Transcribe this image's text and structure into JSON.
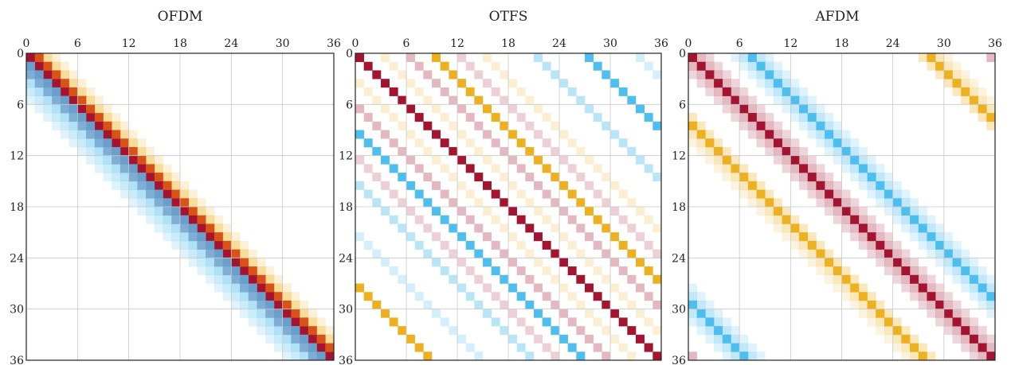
{
  "chart_data": [
    {
      "type": "heatmap",
      "title": "OFDM",
      "size": 36,
      "xticks": [
        "0",
        "6",
        "12",
        "18",
        "24",
        "30",
        "36"
      ],
      "yticks": [
        "0",
        "6",
        "12",
        "18",
        "24",
        "30",
        "36"
      ],
      "grid": true,
      "xaxis_position": "top",
      "bands": [
        {
          "offset": 0,
          "color": "#A2142F",
          "alpha": 1.0
        },
        {
          "offset": 1,
          "color": "#D95319",
          "alpha": 1.0
        },
        {
          "offset": 2,
          "color": "#EDB120",
          "alpha": 0.45
        },
        {
          "offset": 3,
          "color": "#EDB120",
          "alpha": 0.18
        },
        {
          "offset": -1,
          "color": "#6A9FCC",
          "alpha": 1.0
        },
        {
          "offset": -2,
          "color": "#6A9FCC",
          "alpha": 0.85
        },
        {
          "offset": -3,
          "color": "#4DBEEE",
          "alpha": 0.45
        },
        {
          "offset": -4,
          "color": "#4DBEEE",
          "alpha": 0.3
        },
        {
          "offset": -5,
          "color": "#4DBEEE",
          "alpha": 0.18
        }
      ]
    },
    {
      "type": "heatmap",
      "title": "OTFS",
      "size": 36,
      "xticks": [
        "0",
        "6",
        "12",
        "18",
        "24",
        "30",
        "36"
      ],
      "yticks": [
        "0",
        "6",
        "12",
        "18",
        "24",
        "30",
        "36"
      ],
      "grid": true,
      "xaxis_position": "top",
      "bands": [
        {
          "offset": 0,
          "color": "#A2142F",
          "alpha": 1.0
        },
        {
          "offset": 6,
          "color": "#A2142F",
          "alpha": 0.3
        },
        {
          "offset": -6,
          "color": "#A2142F",
          "alpha": 0.3
        },
        {
          "offset": 12,
          "color": "#A2142F",
          "alpha": 0.2
        },
        {
          "offset": -12,
          "color": "#A2142F",
          "alpha": 0.2
        },
        {
          "offset": 9,
          "color": "#EDB120",
          "alpha": 1.0
        },
        {
          "offset": -27,
          "color": "#EDB120",
          "alpha": 1.0
        },
        {
          "offset": 3,
          "color": "#EDB120",
          "alpha": 0.2
        },
        {
          "offset": -3,
          "color": "#EDB120",
          "alpha": 0.2
        },
        {
          "offset": 15,
          "color": "#EDB120",
          "alpha": 0.2
        },
        {
          "offset": -9,
          "color": "#EDB120",
          "alpha": 0.2
        },
        {
          "offset": 27,
          "color": "#4DBEEE",
          "alpha": 1.0
        },
        {
          "offset": -9,
          "color": "#4DBEEE",
          "alpha": 1.0
        },
        {
          "offset": 21,
          "color": "#4DBEEE",
          "alpha": 0.4
        },
        {
          "offset": -15,
          "color": "#4DBEEE",
          "alpha": 0.4
        },
        {
          "offset": 33,
          "color": "#4DBEEE",
          "alpha": 0.25
        },
        {
          "offset": -21,
          "color": "#4DBEEE",
          "alpha": 0.25
        }
      ]
    },
    {
      "type": "heatmap",
      "title": "AFDM",
      "size": 36,
      "xticks": [
        "0",
        "6",
        "12",
        "18",
        "24",
        "30",
        "36"
      ],
      "yticks": [
        "0",
        "6",
        "12",
        "18",
        "24",
        "30",
        "36"
      ],
      "grid": true,
      "xaxis_position": "top",
      "bands": [
        {
          "offset": 0,
          "color": "#A2142F",
          "alpha": 1.0
        },
        {
          "offset": 1,
          "color": "#A2142F",
          "alpha": 0.3
        },
        {
          "offset": -1,
          "color": "#A2142F",
          "alpha": 0.3
        },
        {
          "offset": 2,
          "color": "#A2142F",
          "alpha": 0.18
        },
        {
          "offset": -2,
          "color": "#A2142F",
          "alpha": 0.18
        },
        {
          "offset": -35,
          "color": "#A2142F",
          "alpha": 0.3
        },
        {
          "offset": 35,
          "color": "#A2142F",
          "alpha": 0.3
        },
        {
          "offset": 7,
          "color": "#4DBEEE",
          "alpha": 1.0
        },
        {
          "offset": -29,
          "color": "#4DBEEE",
          "alpha": 1.0
        },
        {
          "offset": 6,
          "color": "#4DBEEE",
          "alpha": 0.35
        },
        {
          "offset": 8,
          "color": "#4DBEEE",
          "alpha": 0.35
        },
        {
          "offset": -28,
          "color": "#4DBEEE",
          "alpha": 0.35
        },
        {
          "offset": -30,
          "color": "#4DBEEE",
          "alpha": 0.35
        },
        {
          "offset": 9,
          "color": "#4DBEEE",
          "alpha": 0.18
        },
        {
          "offset": 5,
          "color": "#4DBEEE",
          "alpha": 0.18
        },
        {
          "offset": -27,
          "color": "#4DBEEE",
          "alpha": 0.18
        },
        {
          "offset": -31,
          "color": "#4DBEEE",
          "alpha": 0.18
        },
        {
          "offset": -8,
          "color": "#EDB120",
          "alpha": 1.0
        },
        {
          "offset": 28,
          "color": "#EDB120",
          "alpha": 1.0
        },
        {
          "offset": -7,
          "color": "#EDB120",
          "alpha": 0.3
        },
        {
          "offset": -9,
          "color": "#EDB120",
          "alpha": 0.3
        },
        {
          "offset": 29,
          "color": "#EDB120",
          "alpha": 0.3
        },
        {
          "offset": 27,
          "color": "#EDB120",
          "alpha": 0.3
        },
        {
          "offset": -10,
          "color": "#EDB120",
          "alpha": 0.15
        },
        {
          "offset": 30,
          "color": "#EDB120",
          "alpha": 0.15
        }
      ]
    }
  ]
}
